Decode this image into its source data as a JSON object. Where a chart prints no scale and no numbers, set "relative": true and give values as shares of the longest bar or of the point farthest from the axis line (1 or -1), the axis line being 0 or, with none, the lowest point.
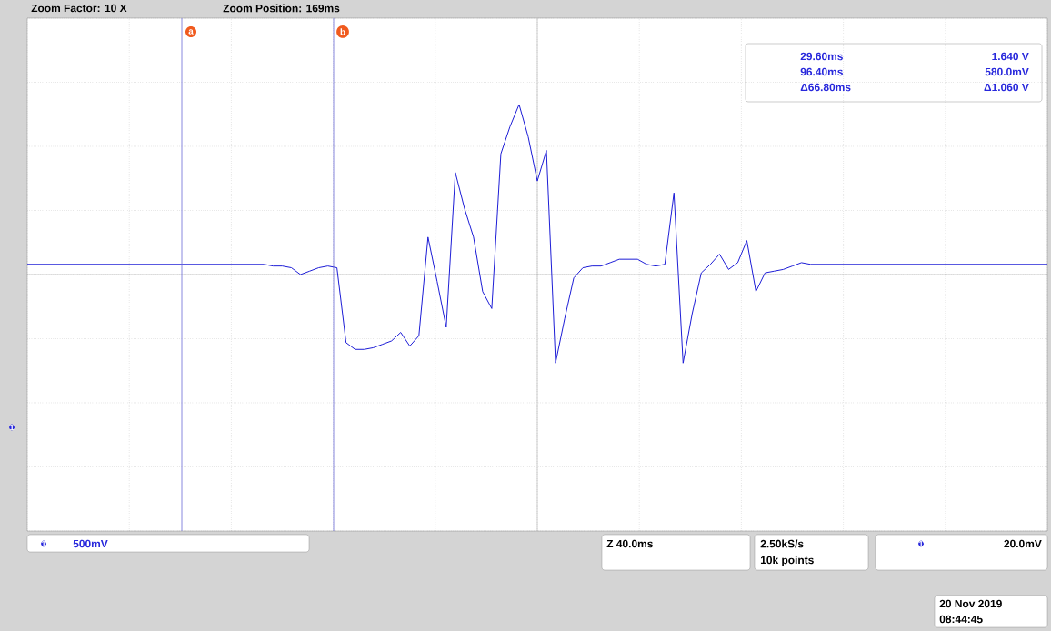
{
  "chart_data": {
    "type": "line",
    "relative": true,
    "grid": true,
    "tick_labels": false,
    "categories": [
      null,
      null,
      null,
      null,
      null,
      null,
      null,
      null,
      null,
      null,
      null,
      null,
      null,
      null,
      null,
      null,
      null,
      null,
      null,
      null,
      null,
      null,
      null,
      null,
      null,
      null,
      null,
      null,
      null,
      null,
      null,
      null,
      null,
      null,
      null,
      null,
      null,
      null,
      null,
      null,
      null,
      null,
      null,
      null,
      null,
      null,
      null,
      null,
      null,
      null,
      null,
      null,
      null,
      null,
      null,
      null,
      null,
      null,
      null,
      null,
      null,
      null,
      null,
      null,
      null,
      null,
      null,
      null,
      null,
      null,
      null,
      null,
      null,
      null,
      null,
      null,
      null,
      null,
      null,
      null,
      null,
      null,
      null,
      null,
      null,
      null,
      null,
      null,
      null,
      null,
      null,
      null,
      null,
      null,
      null,
      null,
      null,
      null,
      null,
      null,
      null,
      null,
      null,
      null,
      null,
      null,
      null,
      null,
      null,
      null,
      null,
      null,
      null
    ],
    "series": [
      {
        "color": "#1c1cd6",
        "values": [
          0.06,
          0.06,
          0.06,
          0.06,
          0.06,
          0.06,
          0.06,
          0.06,
          0.06,
          0.06,
          0.06,
          0.06,
          0.06,
          0.06,
          0.06,
          0.06,
          0.06,
          0.06,
          0.06,
          0.06,
          0.06,
          0.06,
          0.06,
          0.06,
          0.06,
          0.06,
          0.06,
          0.05,
          0.05,
          0.04,
          0.0,
          0.02,
          0.04,
          0.05,
          0.04,
          -0.4,
          -0.44,
          -0.44,
          -0.43,
          -0.41,
          -0.39,
          -0.34,
          -0.42,
          -0.36,
          0.22,
          -0.04,
          -0.31,
          0.6,
          0.39,
          0.22,
          -0.1,
          -0.2,
          0.71,
          0.87,
          1.0,
          0.81,
          0.55,
          0.73,
          -0.52,
          -0.26,
          -0.02,
          0.04,
          0.05,
          0.05,
          0.07,
          0.09,
          0.09,
          0.09,
          0.06,
          0.05,
          0.06,
          0.48,
          -0.52,
          -0.23,
          0.01,
          0.06,
          0.12,
          0.03,
          0.07,
          0.2,
          -0.1,
          0.01,
          0.02,
          0.03,
          0.05,
          0.07,
          0.06,
          0.06,
          0.06,
          0.06,
          0.06,
          0.06,
          0.06,
          0.06,
          0.06,
          0.06,
          0.06,
          0.06,
          0.06,
          0.06,
          0.06,
          0.06,
          0.06,
          0.06,
          0.06,
          0.06,
          0.06,
          0.06,
          0.06,
          0.06,
          0.06,
          0.06,
          0.06
        ]
      }
    ],
    "annotations": [
      "a",
      "b",
      "Zoom Factor: 10 X",
      "Zoom Position: 169ms",
      "29.60ms",
      "1.640 V",
      "96.40ms",
      "580.0mV",
      "Δ66.80ms",
      "Δ1.060 V",
      "1",
      "1",
      "500mV",
      "Z 40.0ms",
      "2.50kS/s",
      "10k points",
      "1",
      "20.0mV",
      "20 Nov 2019",
      "08:44:45"
    ]
  }
}
